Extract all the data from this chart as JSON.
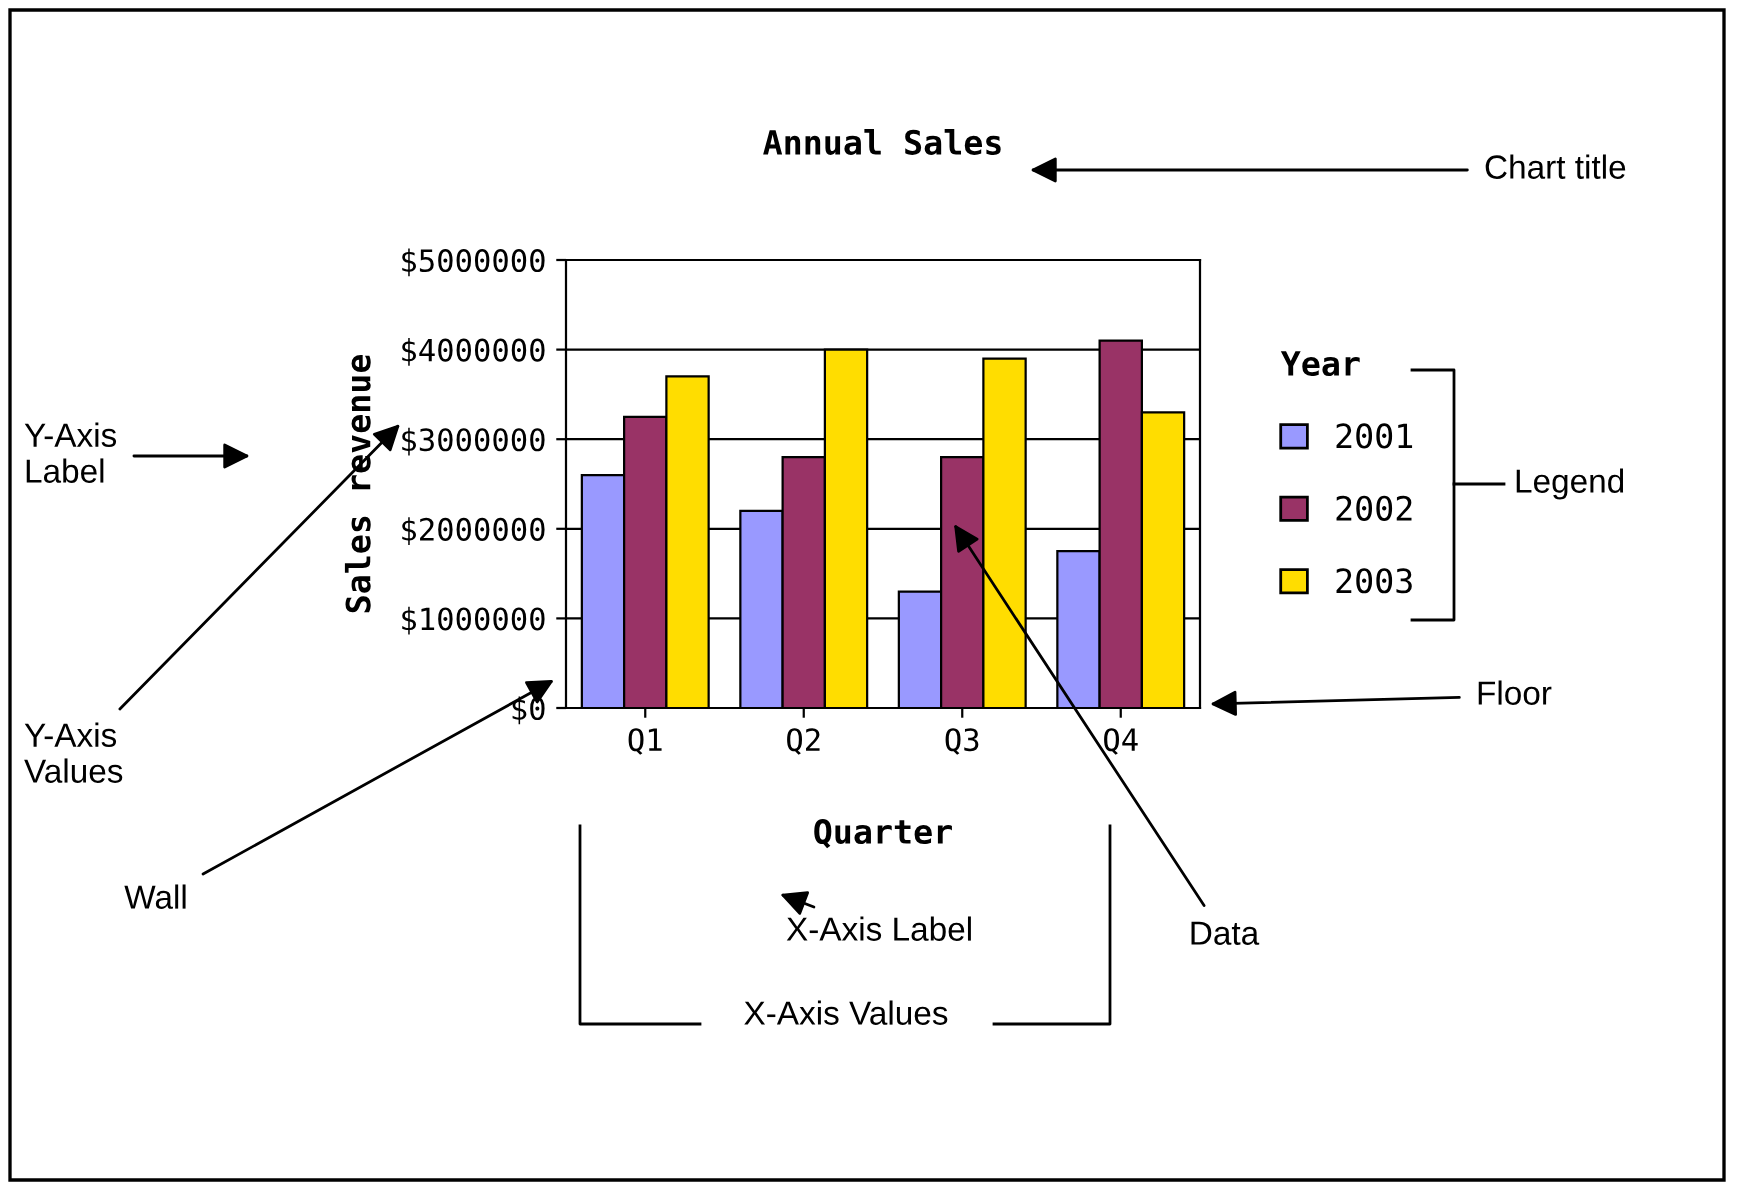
{
  "chart_data": {
    "type": "bar",
    "title": "Annual Sales",
    "xlabel": "Quarter",
    "ylabel": "Sales revenue",
    "legend_title": "Year",
    "categories": [
      "Q1",
      "Q2",
      "Q3",
      "Q4"
    ],
    "series": [
      {
        "name": "2001",
        "color": "#9999ff",
        "values": [
          2600000,
          2200000,
          1300000,
          1750000
        ]
      },
      {
        "name": "2002",
        "color": "#993366",
        "values": [
          3250000,
          2800000,
          2800000,
          4100000
        ]
      },
      {
        "name": "2003",
        "color": "#ffdd00",
        "values": [
          3700000,
          4000000,
          3900000,
          3300000
        ]
      }
    ],
    "ylim": [
      0,
      5000000
    ],
    "yticks": [
      {
        "value": 0,
        "label": "$0"
      },
      {
        "value": 1000000,
        "label": "$1000000"
      },
      {
        "value": 2000000,
        "label": "$2000000"
      },
      {
        "value": 3000000,
        "label": "$3000000"
      },
      {
        "value": 4000000,
        "label": "$4000000"
      },
      {
        "value": 5000000,
        "label": "$5000000"
      }
    ],
    "grid": "y",
    "legend": "right",
    "annotations": [
      "Chart title",
      "Legend",
      "Floor",
      "Data",
      "Wall",
      "X-Axis Label",
      "X-Axis Values",
      "Y-Axis\nValues",
      "Y-Axis\nLabel"
    ]
  }
}
